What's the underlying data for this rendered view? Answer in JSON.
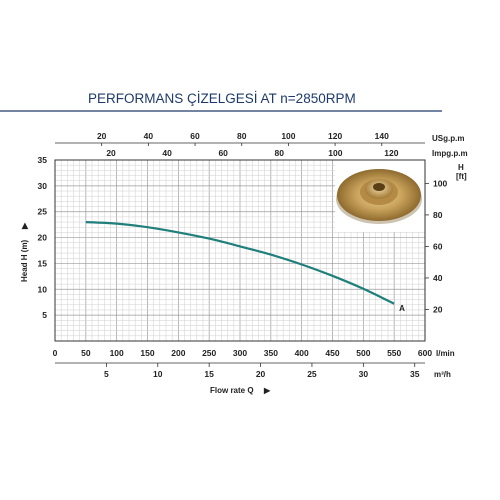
{
  "chart_data": {
    "type": "line",
    "title": "PERFORMANS ÇİZELGESİ  AT n=2850RPM",
    "ylabel_left": "Head H (m)",
    "ylabel_right": "H [ft]",
    "xlabel": "Flow rate Q",
    "x_unit_lmin": "l/min",
    "x_unit_m3h": "m³/h",
    "top_unit_usgpm": "USg.p.m",
    "top_unit_impgpm": "Impg.p.m",
    "xlim_lmin": [
      0,
      600
    ],
    "ylim_m": [
      0,
      35
    ],
    "grid": true,
    "ticks_lmin": [
      "0",
      "50",
      "100",
      "150",
      "200",
      "250",
      "300",
      "350",
      "400",
      "450",
      "500",
      "550",
      "600"
    ],
    "ticks_m3h": [
      "5",
      "10",
      "15",
      "20",
      "25",
      "30",
      "35"
    ],
    "ticks_usgpm": [
      "20",
      "40",
      "60",
      "80",
      "100",
      "120",
      "140"
    ],
    "ticks_impgpm": [
      "20",
      "40",
      "60",
      "80",
      "100",
      "120"
    ],
    "ticks_head_m": [
      "5",
      "10",
      "15",
      "20",
      "25",
      "30",
      "35"
    ],
    "ticks_head_ft": [
      "20",
      "40",
      "60",
      "80",
      "100"
    ],
    "series": [
      {
        "name": "A",
        "color": "#1f7f7a",
        "x": [
          50,
          100,
          150,
          200,
          250,
          300,
          350,
          400,
          450,
          500,
          550
        ],
        "y": [
          23,
          22.7,
          22,
          21,
          19.8,
          18.3,
          16.7,
          14.8,
          12.6,
          10.1,
          7.2
        ]
      }
    ]
  },
  "colors": {
    "title": "#1d3a6b",
    "title_rule": "#1d3a6b",
    "curve": "#1f7f7a"
  },
  "inset_image": "impeller-photo"
}
